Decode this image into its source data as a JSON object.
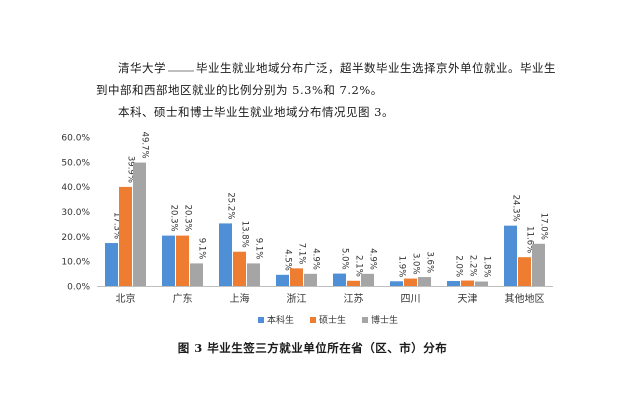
{
  "text": {
    "p1_a": "清华大学",
    "p1_b": "毕业生就业地域分布广泛，超半数毕业生选择京外单位就业。毕业生到中部和西部地区就业的比例分别为 5.3%和 7.2%。",
    "p2": "本科、硕士和博士毕业生就业地域分布情况见图 3。",
    "caption": "图 3 毕业生签三方就业单位所在省（区、市）分布"
  },
  "chart_data": {
    "type": "bar",
    "categories": [
      "北京",
      "广东",
      "上海",
      "浙江",
      "江苏",
      "四川",
      "天津",
      "其他地区"
    ],
    "series": [
      {
        "name": "本科生",
        "color": "#4f8fd6",
        "values": [
          17.3,
          20.3,
          25.2,
          4.5,
          5.0,
          1.9,
          2.0,
          24.3
        ]
      },
      {
        "name": "硕士生",
        "color": "#ef7d31",
        "values": [
          39.9,
          20.3,
          13.8,
          7.1,
          2.1,
          3.0,
          2.2,
          11.6
        ]
      },
      {
        "name": "博士生",
        "color": "#a5a5a5",
        "values": [
          49.7,
          9.1,
          9.1,
          4.9,
          4.9,
          3.6,
          1.8,
          17.0
        ]
      }
    ],
    "labels": [
      [
        "17.3%",
        "39.9%",
        "49.7%"
      ],
      [
        "20.3%",
        "20.3%",
        "9.1%"
      ],
      [
        "25.2%",
        "13.8%",
        "9.1%"
      ],
      [
        "4.5%",
        "7.1%",
        "4.9%"
      ],
      [
        "5.0%",
        "2.1%",
        "4.9%"
      ],
      [
        "1.9%",
        "3.0%",
        "3.6%"
      ],
      [
        "2.0%",
        "2.2%",
        "1.8%"
      ],
      [
        "24.3%",
        "11.6%",
        "17.0%"
      ]
    ],
    "yticks": [
      "0.0%",
      "10.0%",
      "20.0%",
      "30.0%",
      "40.0%",
      "50.0%",
      "60.0%"
    ],
    "ylim": [
      0,
      60
    ],
    "grid": false,
    "legend": "bottom"
  }
}
